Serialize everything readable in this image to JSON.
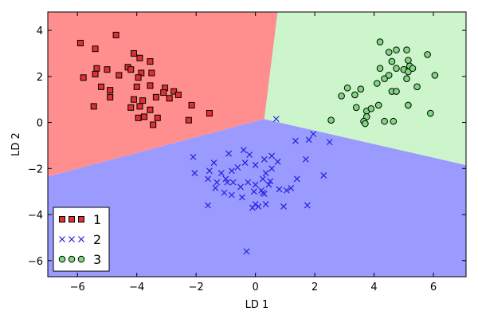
{
  "chart_data": {
    "type": "scatter",
    "title": "",
    "xlabel": "LD 1",
    "ylabel": "LD 2",
    "xlim": [
      -7,
      7.1
    ],
    "ylim": [
      -6.7,
      4.8
    ],
    "xticks": [
      -6,
      -4,
      -2,
      0,
      2,
      4,
      6
    ],
    "yticks": [
      -6,
      -4,
      -2,
      0,
      2,
      4
    ],
    "tick_labels_x": [
      "−6",
      "−4",
      "−2",
      "0",
      "2",
      "4",
      "6"
    ],
    "tick_labels_y": [
      "−6",
      "−4",
      "−2",
      "0",
      "2",
      "4"
    ],
    "legend_position": "lower-left",
    "decision_regions": [
      {
        "class": "1",
        "color": "#ff8f8f",
        "polygon": [
          [
            -7,
            4.8
          ],
          [
            0.75,
            4.8
          ],
          [
            0.3,
            0.15
          ],
          [
            -7,
            -2.35
          ]
        ]
      },
      {
        "class": "2",
        "color": "#9a9aff",
        "polygon": [
          [
            -7,
            -2.35
          ],
          [
            0.3,
            0.15
          ],
          [
            7.1,
            -1.85
          ],
          [
            7.1,
            -6.7
          ],
          [
            -7,
            -6.7
          ]
        ]
      },
      {
        "class": "3",
        "color": "#ccf5cc",
        "polygon": [
          [
            0.75,
            4.8
          ],
          [
            7.1,
            4.8
          ],
          [
            7.1,
            -1.85
          ],
          [
            0.3,
            0.15
          ]
        ]
      }
    ],
    "series": [
      {
        "name": "1",
        "marker": "square",
        "color": "#e03030",
        "edge": "#000000",
        "points": [
          [
            -5.9,
            3.45
          ],
          [
            -5.4,
            3.2
          ],
          [
            -4.7,
            3.8
          ],
          [
            -4.1,
            3.0
          ],
          [
            -3.9,
            2.8
          ],
          [
            -3.55,
            2.65
          ],
          [
            -5.8,
            1.95
          ],
          [
            -5.35,
            2.35
          ],
          [
            -5.0,
            2.3
          ],
          [
            -5.4,
            2.1
          ],
          [
            -4.6,
            2.05
          ],
          [
            -4.3,
            2.4
          ],
          [
            -4.2,
            2.3
          ],
          [
            -3.85,
            2.15
          ],
          [
            -3.5,
            2.15
          ],
          [
            -3.95,
            1.95
          ],
          [
            -5.2,
            1.55
          ],
          [
            -4.9,
            1.4
          ],
          [
            -4.0,
            1.55
          ],
          [
            -3.55,
            1.6
          ],
          [
            -3.05,
            1.5
          ],
          [
            -3.1,
            1.3
          ],
          [
            -2.75,
            1.35
          ],
          [
            -2.6,
            1.2
          ],
          [
            -3.35,
            1.1
          ],
          [
            -2.9,
            1.05
          ],
          [
            -4.9,
            1.1
          ],
          [
            -4.1,
            1.0
          ],
          [
            -3.8,
            0.95
          ],
          [
            -3.9,
            0.7
          ],
          [
            -4.2,
            0.65
          ],
          [
            -5.45,
            0.7
          ],
          [
            -3.55,
            0.55
          ],
          [
            -2.15,
            0.75
          ],
          [
            -1.55,
            0.4
          ],
          [
            -3.75,
            0.25
          ],
          [
            -3.3,
            0.2
          ],
          [
            -3.95,
            0.2
          ],
          [
            -2.25,
            0.1
          ],
          [
            -3.45,
            -0.1
          ]
        ]
      },
      {
        "name": "2",
        "marker": "x",
        "color": "#2020e0",
        "points": [
          [
            0.7,
            0.15
          ],
          [
            1.35,
            -0.8
          ],
          [
            1.8,
            -0.75
          ],
          [
            1.95,
            -0.5
          ],
          [
            2.5,
            -0.85
          ],
          [
            1.7,
            -1.6
          ],
          [
            0.75,
            -1.7
          ],
          [
            0.55,
            -1.45
          ],
          [
            -0.4,
            -1.2
          ],
          [
            -0.9,
            -1.35
          ],
          [
            -0.2,
            -1.4
          ],
          [
            0.3,
            -1.6
          ],
          [
            -2.1,
            -1.5
          ],
          [
            -1.4,
            -1.75
          ],
          [
            -0.35,
            -1.75
          ],
          [
            0.0,
            -1.85
          ],
          [
            -0.6,
            -1.95
          ],
          [
            -0.8,
            -2.1
          ],
          [
            0.55,
            -2.0
          ],
          [
            0.35,
            -2.2
          ],
          [
            -2.05,
            -2.2
          ],
          [
            -1.55,
            -2.1
          ],
          [
            -1.15,
            -2.2
          ],
          [
            -1.0,
            -2.45
          ],
          [
            -0.95,
            -2.6
          ],
          [
            -0.75,
            -2.6
          ],
          [
            0.25,
            -2.45
          ],
          [
            0.45,
            -2.7
          ],
          [
            0.5,
            -2.55
          ],
          [
            0.8,
            -2.9
          ],
          [
            -1.6,
            -2.45
          ],
          [
            -1.3,
            -2.6
          ],
          [
            -0.25,
            -2.6
          ],
          [
            0.0,
            -2.7
          ],
          [
            1.4,
            -2.45
          ],
          [
            2.3,
            -2.3
          ],
          [
            -1.35,
            -2.85
          ],
          [
            -0.5,
            -2.8
          ],
          [
            0.2,
            -2.95
          ],
          [
            -0.05,
            -3.0
          ],
          [
            0.3,
            -3.1
          ],
          [
            1.05,
            -2.95
          ],
          [
            1.2,
            -2.85
          ],
          [
            -1.05,
            -3.05
          ],
          [
            -0.8,
            -3.15
          ],
          [
            0.25,
            -3.05
          ],
          [
            -0.45,
            -3.25
          ],
          [
            0.0,
            -3.55
          ],
          [
            0.1,
            -3.65
          ],
          [
            -1.6,
            -3.6
          ],
          [
            0.35,
            -3.55
          ],
          [
            0.95,
            -3.65
          ],
          [
            1.75,
            -3.6
          ],
          [
            -0.1,
            -3.7
          ],
          [
            -0.3,
            -5.6
          ]
        ]
      },
      {
        "name": "3",
        "marker": "circle",
        "color": "#7fd87f",
        "edge": "#000000",
        "points": [
          [
            4.2,
            3.5
          ],
          [
            4.75,
            3.15
          ],
          [
            4.5,
            3.05
          ],
          [
            5.1,
            3.15
          ],
          [
            5.8,
            2.95
          ],
          [
            5.15,
            2.7
          ],
          [
            4.6,
            2.65
          ],
          [
            4.2,
            2.35
          ],
          [
            4.75,
            2.35
          ],
          [
            5.0,
            2.3
          ],
          [
            5.15,
            2.2
          ],
          [
            5.2,
            2.45
          ],
          [
            5.3,
            2.35
          ],
          [
            6.05,
            2.05
          ],
          [
            4.35,
            1.9
          ],
          [
            4.5,
            2.05
          ],
          [
            4.1,
            1.7
          ],
          [
            5.1,
            1.9
          ],
          [
            5.45,
            1.55
          ],
          [
            3.1,
            1.5
          ],
          [
            3.55,
            1.45
          ],
          [
            4.6,
            1.35
          ],
          [
            4.75,
            1.35
          ],
          [
            2.9,
            1.15
          ],
          [
            3.35,
            1.2
          ],
          [
            5.15,
            0.75
          ],
          [
            3.4,
            0.65
          ],
          [
            4.15,
            0.75
          ],
          [
            3.75,
            0.5
          ],
          [
            3.9,
            0.6
          ],
          [
            5.9,
            0.4
          ],
          [
            3.75,
            0.25
          ],
          [
            3.65,
            0.05
          ],
          [
            4.35,
            0.05
          ],
          [
            4.65,
            0.05
          ],
          [
            3.7,
            -0.05
          ],
          [
            2.55,
            0.1
          ]
        ]
      }
    ]
  }
}
